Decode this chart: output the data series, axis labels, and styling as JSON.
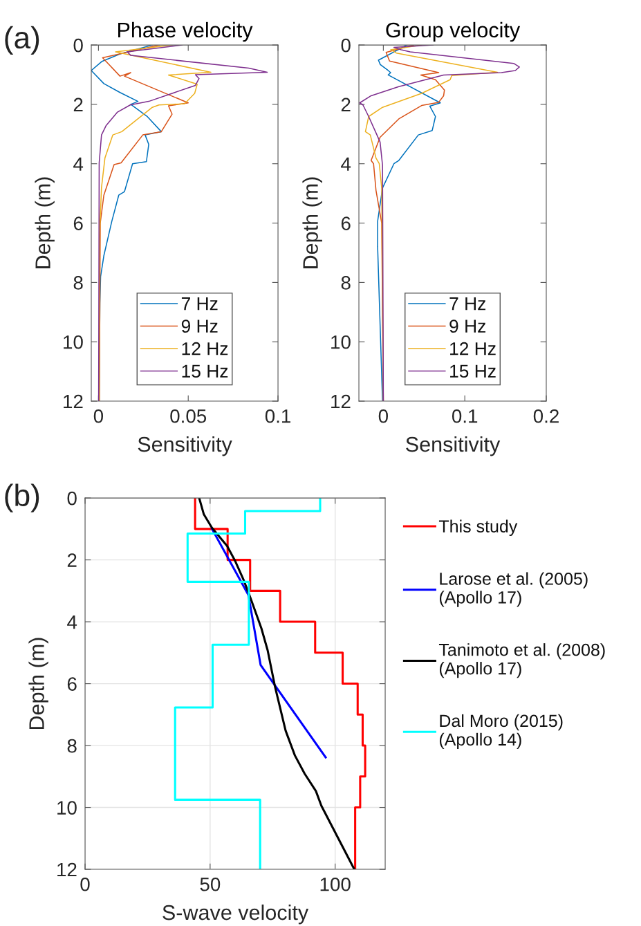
{
  "chart_data": [
    {
      "type": "line",
      "title": "Phase velocity",
      "xlabel": "Sensitivity",
      "ylabel": "Depth (m)",
      "annotations": [
        "(a)"
      ],
      "xlim": [
        -0.004,
        0.1
      ],
      "xticks": [
        0,
        0.05,
        0.1
      ],
      "ylim": [
        12,
        0
      ],
      "yticks": [
        0,
        2,
        4,
        6,
        8,
        10,
        12
      ],
      "grid": false,
      "legend": "bottom",
      "series": [
        {
          "name": "7 Hz",
          "color": "#0072bd",
          "x": [
            0.03,
            0.012,
            0.002,
            -0.004,
            0.003,
            0.012,
            0.022,
            0.018,
            0.027,
            0.035,
            0.026,
            0.028,
            0.0267,
            0.019,
            0.0145,
            0.0113,
            0.0074,
            0.003,
            0.0012,
            0.0008,
            0.0004
          ],
          "values": [
            0,
            0.3,
            0.55,
            0.86,
            1.3,
            1.6,
            1.9,
            2.0,
            2.4,
            2.92,
            3.03,
            3.35,
            3.93,
            4.0,
            4.94,
            5.06,
            5.95,
            7.1,
            7.8,
            8.7,
            12
          ]
        },
        {
          "name": "9 Hz",
          "color": "#d95319",
          "x": [
            0.034,
            0.0023,
            0.012,
            0.018,
            0.0145,
            0.05,
            0.039,
            0.041,
            0.035,
            0.0247,
            0.0126,
            0.0087,
            0.003,
            0.001,
            0.0005
          ],
          "values": [
            0,
            0.43,
            1.05,
            0.93,
            1.05,
            1.95,
            2.05,
            2.33,
            2.92,
            3.03,
            3.97,
            4.03,
            5.06,
            6.0,
            12
          ]
        },
        {
          "name": "12 Hz",
          "color": "#edb120",
          "x": [
            0.041,
            0.0095,
            0.0626,
            0.039,
            0.055,
            0.0536,
            0.048,
            0.0337,
            0.03,
            0.013,
            0.008,
            0.0036,
            0.0017,
            0.0006,
            0.0004
          ],
          "values": [
            0,
            0.23,
            0.92,
            1.01,
            1.32,
            1.63,
            1.98,
            2.02,
            2.1,
            2.92,
            3.03,
            3.81,
            4.8,
            6.4,
            12
          ]
        },
        {
          "name": "15 Hz",
          "color": "#7e2f8e",
          "x": [
            0.0465,
            0.016,
            0.018,
            0.0837,
            0.094,
            0.054,
            0.056,
            0.054,
            0.028,
            0.0177,
            0.0106,
            0.0042,
            0.0017,
            0.0004,
            0.0001
          ],
          "values": [
            0,
            0.23,
            0.35,
            0.78,
            0.92,
            1.0,
            1.13,
            1.36,
            1.9,
            2.02,
            2.26,
            2.72,
            3.03,
            3.97,
            12
          ]
        }
      ]
    },
    {
      "type": "line",
      "title": "Group velocity",
      "xlabel": "Sensitivity",
      "ylabel": "Depth (m)",
      "xlim": [
        -0.03,
        0.2
      ],
      "xticks": [
        0,
        0.1,
        0.2
      ],
      "ylim": [
        12,
        0
      ],
      "yticks": [
        0,
        2,
        4,
        6,
        8,
        10,
        12
      ],
      "grid": false,
      "legend": "bottom",
      "series": [
        {
          "name": "7 Hz",
          "color": "#0072bd",
          "x": [
            0.029,
            -0.006,
            -0.0037,
            0.006,
            0.009,
            0.006,
            0.07,
            0.057,
            0.064,
            0.06,
            0.043,
            0.019,
            0.013,
            -0.001,
            -0.007,
            -0.007,
            -0.001
          ],
          "values": [
            0,
            0.51,
            0.66,
            0.86,
            0.93,
            1.01,
            1.95,
            2.06,
            2.41,
            2.88,
            3.03,
            3.89,
            4.0,
            4.82,
            5.94,
            6.8,
            12
          ]
        },
        {
          "name": "9 Hz",
          "color": "#d95319",
          "x": [
            0.037,
            0.0034,
            0.0076,
            0.068,
            0.046,
            0.064,
            0.075,
            0.074,
            0.068,
            0.047,
            0.019,
            -0.004,
            -0.015,
            -0.012,
            -0.009,
            -0.002,
            0
          ],
          "values": [
            0,
            0.25,
            0.54,
            0.93,
            1.01,
            1.17,
            1.52,
            1.71,
            1.93,
            2.04,
            2.49,
            3.11,
            3.89,
            4.0,
            4.9,
            6.0,
            12
          ]
        },
        {
          "name": "12 Hz",
          "color": "#edb120",
          "x": [
            0.047,
            0.009,
            0.016,
            0.14,
            0.084,
            0.082,
            0.047,
            -0.001,
            -0.018,
            -0.022,
            -0.016,
            -0.009,
            -0.005,
            -0.002,
            0
          ],
          "values": [
            0,
            0.16,
            0.27,
            0.92,
            1.03,
            1.17,
            1.63,
            2.1,
            2.41,
            2.92,
            3.03,
            3.81,
            4.0,
            4.82,
            12
          ]
        },
        {
          "name": "15 Hz",
          "color": "#7e2f8e",
          "x": [
            0.061,
            0.013,
            0.022,
            0.033,
            0.16,
            0.167,
            0.162,
            0.145,
            0.074,
            0.019,
            -0.015,
            -0.029,
            -0.025,
            -0.018,
            -0.009,
            -0.004,
            -0.001,
            0
          ],
          "values": [
            0,
            0.08,
            0.16,
            0.23,
            0.62,
            0.74,
            0.86,
            0.93,
            1.01,
            1.4,
            1.71,
            1.95,
            2.02,
            2.41,
            2.96,
            3.27,
            4.05,
            12
          ]
        }
      ]
    },
    {
      "type": "line",
      "xlabel": "S-wave velocity",
      "ylabel": "Depth (m)",
      "annotations": [
        "(b)"
      ],
      "xlim": [
        0,
        120
      ],
      "xticks": [
        0,
        50,
        100
      ],
      "ylim": [
        12,
        0
      ],
      "yticks": [
        0,
        2,
        4,
        6,
        8,
        10,
        12
      ],
      "grid": true,
      "legend": "right",
      "series": [
        {
          "name": "This study",
          "color": "#ff0000",
          "x": [
            44,
            44,
            57,
            57,
            66,
            66,
            78,
            78,
            92,
            92,
            103,
            103,
            109,
            109,
            111,
            111,
            112,
            112,
            110,
            110,
            108,
            108
          ],
          "values": [
            0,
            1,
            1,
            2,
            2,
            3,
            3,
            4,
            4,
            5,
            5,
            6,
            6,
            7,
            7,
            8,
            8,
            9,
            9,
            10,
            10,
            12
          ]
        },
        {
          "name": "Larose et al. (2005)\n(Apollo 17)",
          "color": "#0000ff",
          "x": [
            50.7,
            65.3,
            70.2,
            96.2
          ],
          "values": [
            0.99,
            3.13,
            5.4,
            8.38
          ]
        },
        {
          "name": "Tanimoto et al. (2008)\n(Apollo 17)",
          "color": "#000000",
          "x": [
            45.7,
            47.5,
            50.7,
            56.8,
            60.1,
            63.4,
            65.7,
            70.5,
            73,
            75.9,
            80.2,
            83.9,
            87.8,
            92.3,
            94.5,
            107.6
          ],
          "values": [
            0.02,
            0.53,
            0.96,
            1.55,
            2.05,
            2.65,
            3.13,
            4.21,
            4.92,
            6.08,
            7.52,
            8.32,
            8.91,
            9.47,
            9.95,
            11.99
          ]
        },
        {
          "name": "Dal Moro (2015)\n(Apollo 14)",
          "color": "#00ffff",
          "x": [
            94,
            94,
            64,
            64,
            41,
            41,
            65.5,
            65.5,
            51,
            51,
            36,
            36,
            70,
            70
          ],
          "values": [
            0,
            0.42,
            0.42,
            1.15,
            1.15,
            2.71,
            2.71,
            4.74,
            4.74,
            6.77,
            6.77,
            9.75,
            9.75,
            12
          ]
        }
      ]
    }
  ]
}
